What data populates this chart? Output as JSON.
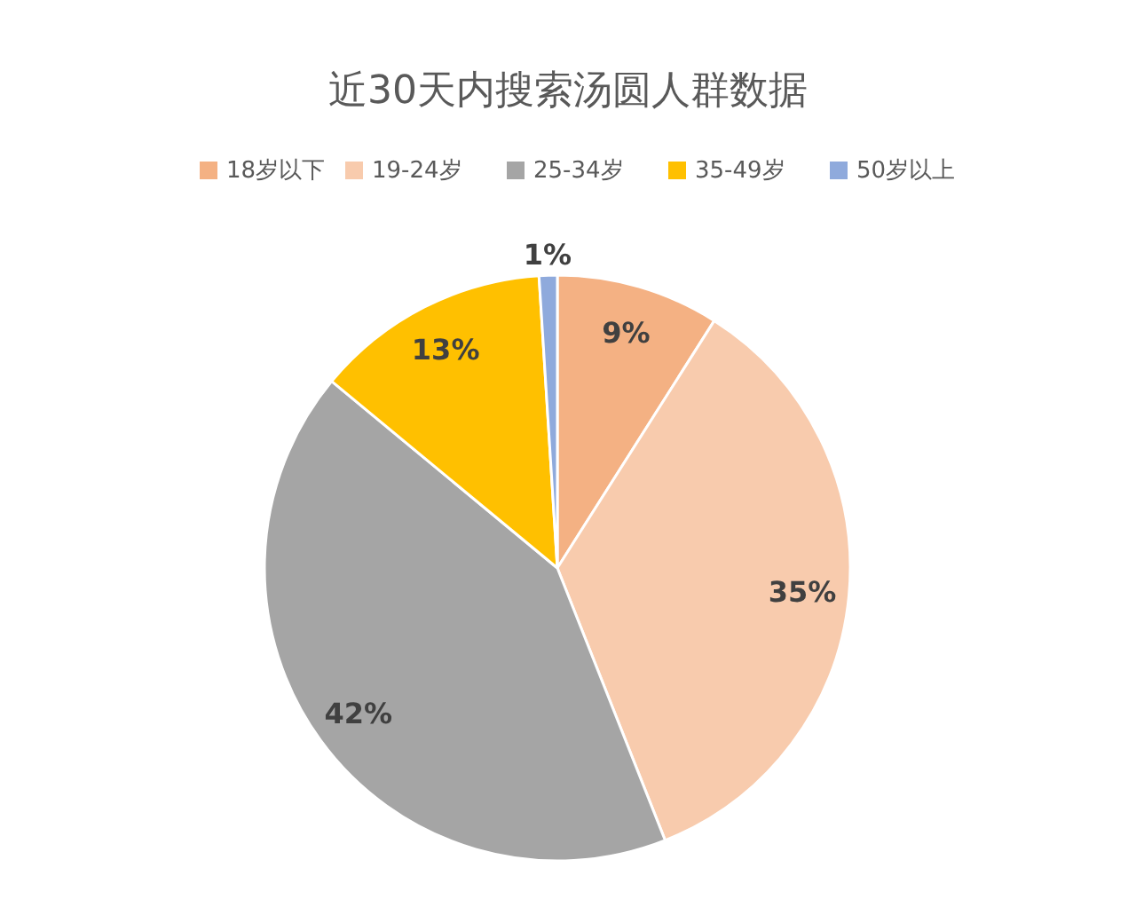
{
  "chart_data": {
    "type": "pie",
    "title": "近30天内搜索汤圆人群数据",
    "categories": [
      "18岁以下",
      "19-24岁",
      "25-34岁",
      "35-49岁",
      "50岁以上"
    ],
    "values": [
      9,
      35,
      42,
      13,
      1
    ],
    "colors": [
      "#f4b183",
      "#f8cbad",
      "#a5a5a5",
      "#ffc000",
      "#8faadc"
    ],
    "value_labels": [
      "9%",
      "35%",
      "42%",
      "13%",
      "1%"
    ],
    "legend": "top"
  }
}
